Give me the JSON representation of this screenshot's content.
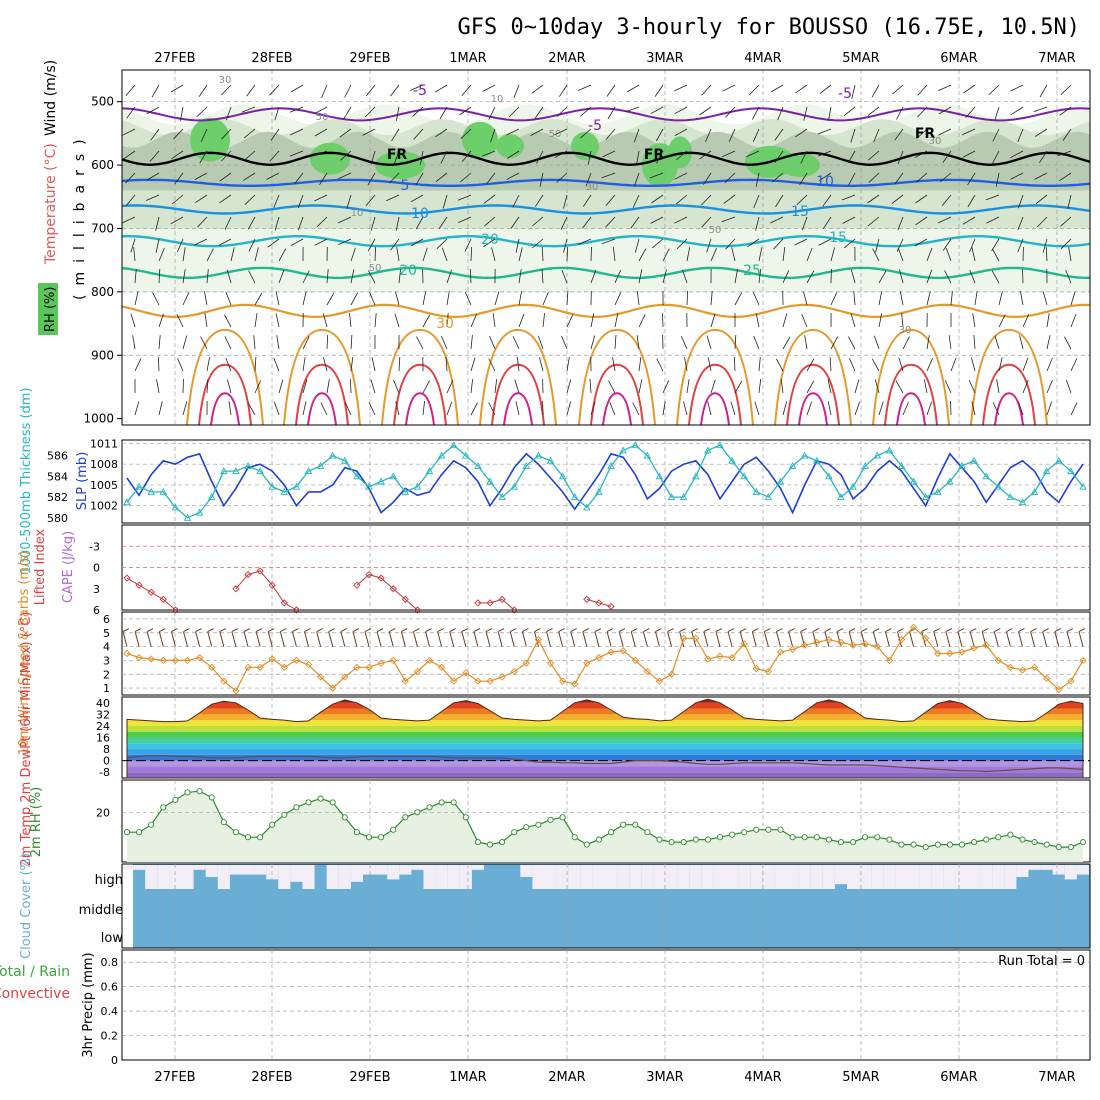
{
  "title": "GFS 0~10day 3-hourly for BOUSSO (16.75E, 10.5N)",
  "dates": [
    "27FEB",
    "28FEB",
    "29FEB",
    "1MAR",
    "2MAR",
    "3MAR",
    "4MAR",
    "5MAR",
    "6MAR",
    "7MAR"
  ],
  "colors": {
    "frame": "#000000",
    "grid": "#a0a0a0",
    "slp": "#1e3fd6",
    "thickness": "#27b7be",
    "lifted_index": "#c43a3a",
    "wind_speed": "#e28d25",
    "barb": "#6b3b22",
    "rh": "#2d8c2d",
    "rh_fill": "#e6f1e2",
    "cloud": "#6aaed6",
    "cloud_clear": "#f3eef6",
    "cape_label": "#b36ad6"
  },
  "upper_panel": {
    "ylabel_text": "(millibars)",
    "labels": {
      "rh": "RH (%)",
      "temperature": "Temperature (°C)",
      "wind": "Wind (m/s)"
    },
    "ylevels": [
      "500",
      "600",
      "700",
      "800",
      "900",
      "1000"
    ],
    "temp_labels": [
      "-5",
      "-5",
      "-5",
      "5",
      "10",
      "10",
      "15",
      "15",
      "20",
      "20",
      "25",
      "30",
      "FR",
      "FR",
      "FR"
    ],
    "rh_labels": [
      "30",
      "10",
      "50",
      "50",
      "30",
      "10",
      "50",
      "50",
      "30",
      "30",
      "10"
    ]
  },
  "chart_data": [
    {
      "type": "line",
      "panel": "slp_thickness",
      "ylabel_left": "1000-500mb Thickness (dm)",
      "ylabel_right": "SLP (mb)",
      "yticks_left": [
        "586",
        "584",
        "582",
        "580"
      ],
      "yticks_right": [
        "1011",
        "1008",
        "1005",
        "1002"
      ],
      "ylim_left": [
        579.5,
        587.5
      ],
      "ylim_right": [
        999.5,
        1011.5
      ],
      "series": [
        {
          "name": "SLP (mb)",
          "values": [
            1006,
            1003.5,
            1006.5,
            1008.5,
            1008,
            1009,
            1009.5,
            1005.5,
            1002,
            1004.5,
            1007.5,
            1008,
            1007,
            1005,
            1002,
            1004,
            1004,
            1005,
            1007.5,
            1007,
            1004.5,
            1001,
            1002.5,
            1004.5,
            1003.5,
            1004,
            1006.5,
            1008.5,
            1007.5,
            1005.5,
            1002,
            1004.5,
            1007.5,
            1009.5,
            1008,
            1006,
            1004,
            1001.5,
            1004,
            1006.5,
            1009.5,
            1009,
            1006.5,
            1003,
            1004.5,
            1007,
            1008,
            1008.5,
            1006.5,
            1003,
            1005.5,
            1008,
            1009,
            1007,
            1004.5,
            1001,
            1005,
            1008.5,
            1008,
            1006.5,
            1003,
            1004.5,
            1007,
            1008.5,
            1007,
            1004.5,
            1002,
            1006,
            1009.5,
            1007.5,
            1005.5,
            1002.5,
            1005,
            1007.5,
            1008.5,
            1007,
            1004,
            1002.5,
            1005.5,
            1008
          ]
        },
        {
          "name": "1000-500mb Thickness (dm)",
          "values": [
            581.5,
            583,
            582.5,
            582.5,
            581,
            580,
            580.5,
            582,
            584.5,
            584.5,
            585,
            584.5,
            583,
            582.5,
            583,
            584.5,
            585,
            586,
            585.5,
            584,
            583,
            583.5,
            584,
            582.5,
            583,
            584.5,
            586,
            587,
            586,
            585,
            583.5,
            582,
            583,
            585,
            586,
            585.5,
            584,
            582,
            581,
            582.5,
            585,
            586.5,
            587,
            586,
            584,
            582,
            582,
            584,
            586.5,
            587,
            585.5,
            584,
            582.5,
            582,
            583.5,
            585,
            586,
            585.5,
            584,
            582,
            583,
            585,
            586,
            586.5,
            585,
            583.5,
            582,
            582.5,
            583.5,
            585,
            585.5,
            584,
            583,
            582,
            581.5,
            582.5,
            584.5,
            585.5,
            584.5,
            583
          ]
        }
      ]
    },
    {
      "type": "line",
      "panel": "lifted_index_cape",
      "ylabel_left": "Lifted Index",
      "ylabel_right": "CAPE (J/kg)",
      "yticks": [
        "-3",
        "0",
        "3",
        "6"
      ],
      "ylim": [
        6,
        -6
      ],
      "series": [
        {
          "name": "Lifted Index",
          "values": [
            1.5,
            2.5,
            3.5,
            4.5,
            6,
            null,
            null,
            null,
            null,
            3,
            1,
            0.5,
            2.5,
            5,
            6,
            null,
            null,
            null,
            null,
            2.5,
            1,
            1.5,
            3,
            4.5,
            6,
            null,
            null,
            null,
            null,
            5,
            5,
            4.5,
            6,
            null,
            null,
            null,
            null,
            null,
            4.5,
            5,
            5.5,
            null
          ]
        }
      ]
    },
    {
      "type": "line",
      "panel": "wind_10m",
      "ylabel": "10m Wind Speed & Barbs (m/s)",
      "yticks": [
        "6",
        "5",
        "4",
        "3",
        "2",
        "1"
      ],
      "ylim": [
        0.5,
        6.5
      ],
      "series": [
        {
          "name": "10m Wind Speed (m/s)",
          "values": [
            3.5,
            3.2,
            3.1,
            3,
            3,
            3,
            3.2,
            2.5,
            1.5,
            0.8,
            2.5,
            2.5,
            3.1,
            2.5,
            3,
            2.7,
            1.8,
            1,
            1.8,
            2.5,
            2.5,
            2.8,
            3,
            1.5,
            2.2,
            3,
            2.5,
            1.5,
            2.1,
            1.5,
            1.5,
            1.8,
            2.2,
            2.8,
            4.5,
            2.8,
            1.5,
            1.3,
            2.8,
            3.2,
            3.6,
            3.7,
            3,
            2.2,
            1.5,
            2,
            4.6,
            4.6,
            3.1,
            3.3,
            3.2,
            4.2,
            2.4,
            2.2,
            3.6,
            3.8,
            4.1,
            4.3,
            4.5,
            4.3,
            4.1,
            4.2,
            4,
            3,
            4.5,
            5.4,
            4.6,
            3.5,
            3.5,
            3.6,
            3.9,
            4.1,
            3,
            2.5,
            2.3,
            2.5,
            1.7,
            0.9,
            1.5,
            3
          ]
        }
      ]
    },
    {
      "type": "area",
      "panel": "temp_dewpt",
      "ylabel": "2m Temp 2m DewPt (6hr Min/Max) (°C)",
      "yticks": [
        "40",
        "32",
        "24",
        "16",
        "8",
        "0",
        "-8"
      ],
      "ylim": [
        -12,
        44
      ],
      "series": [
        {
          "name": "2m Temp (°C)",
          "values": [
            28.5,
            28,
            27.5,
            27,
            27,
            27.5,
            33,
            39,
            41,
            40,
            35,
            29.5,
            28.5,
            28,
            27,
            27.5,
            33.5,
            39,
            42,
            40,
            35.5,
            29.5,
            28.5,
            28,
            27.5,
            28,
            34,
            40,
            41.5,
            39.5,
            34.5,
            29.5,
            28.5,
            28,
            27.5,
            28,
            34,
            40,
            42,
            40,
            35,
            30,
            29,
            28.5,
            27.5,
            28,
            34,
            40,
            42.5,
            40,
            35,
            29.5,
            28.5,
            28,
            27.5,
            28,
            34,
            40,
            42,
            40,
            35,
            29.5,
            28.5,
            28,
            27,
            27.5,
            33.5,
            39.5,
            41.5,
            39.5,
            34.5,
            29,
            28,
            27.5,
            27,
            27.5,
            33,
            39,
            41,
            39.5
          ]
        },
        {
          "name": "2m DewPt (°C)",
          "values": [
            2,
            3,
            3.5,
            3.5,
            3,
            3,
            2.5,
            2,
            2,
            2,
            2.5,
            3,
            3,
            3,
            3,
            3,
            2.5,
            2,
            2,
            2.5,
            3,
            3,
            3,
            3,
            3,
            3,
            2.5,
            2,
            2,
            2,
            2,
            2,
            1,
            0,
            -1,
            -1,
            -1.5,
            -1.5,
            -2,
            -2,
            -2,
            -1,
            0,
            0,
            0,
            -0.5,
            -1,
            -2,
            -2.5,
            -2.5,
            -2,
            -1.5,
            -1.5,
            -1.5,
            -1.5,
            -1.5,
            -2,
            -2.5,
            -3,
            -3,
            -3,
            -3,
            -3.5,
            -4,
            -4.5,
            -5,
            -5.5,
            -6,
            -6.5,
            -7,
            -7,
            -7.5,
            -7,
            -6.5,
            -6,
            -5.5,
            -5,
            -5,
            -5.5,
            -6
          ]
        }
      ]
    },
    {
      "type": "area",
      "panel": "rh_2m",
      "ylabel": "2m RH (%)",
      "yticks": [
        "20"
      ],
      "ylim": [
        0,
        33
      ],
      "series": [
        {
          "name": "2m RH (%)",
          "values": [
            12,
            12,
            15,
            22,
            25,
            28,
            28.5,
            26,
            16,
            12,
            10,
            10,
            15,
            19,
            22,
            24,
            25.5,
            24,
            18,
            12,
            10,
            10,
            13,
            18,
            20,
            22,
            24,
            24,
            18,
            8,
            7,
            8,
            12,
            14,
            15,
            17,
            18,
            10,
            7,
            9,
            12,
            15,
            15,
            12,
            9,
            8,
            8,
            9,
            9,
            10,
            11,
            12,
            13,
            13,
            13,
            10,
            10,
            10,
            9,
            8,
            8,
            10,
            10,
            9,
            7,
            7,
            6,
            7,
            7,
            7,
            8,
            9,
            10,
            11,
            9,
            8,
            7,
            6,
            6,
            8
          ]
        }
      ]
    },
    {
      "type": "bar",
      "panel": "cloud_cover",
      "ylabel": "Cloud Cover (%)",
      "yticks": [
        "high",
        "middle",
        "low"
      ],
      "series": [
        {
          "name": "high",
          "values": [
            80,
            80,
            0,
            0,
            0,
            0,
            80,
            50,
            0,
            60,
            60,
            60,
            40,
            0,
            30,
            0,
            100,
            0,
            0,
            30,
            60,
            60,
            40,
            60,
            80,
            0,
            0,
            0,
            0,
            80,
            100,
            100,
            100,
            50,
            0,
            0,
            0,
            0,
            0,
            0,
            0,
            0,
            0,
            0,
            0,
            0,
            0,
            0,
            0,
            0,
            0,
            0,
            0,
            0,
            0,
            0,
            0,
            0,
            0,
            20,
            0,
            0,
            0,
            0,
            0,
            0,
            0,
            0,
            0,
            0,
            0,
            0,
            0,
            0,
            50,
            80,
            80,
            60,
            40,
            60
          ]
        },
        {
          "name": "middle",
          "values": [
            0,
            0,
            0,
            0,
            0,
            0,
            0,
            0,
            0,
            0,
            0,
            0,
            0,
            0,
            0,
            0,
            0,
            0,
            0,
            0,
            0,
            0,
            0,
            0,
            0,
            0,
            0,
            0,
            0,
            0,
            0,
            0,
            0,
            0,
            0,
            0,
            0,
            0,
            0,
            0,
            0,
            0,
            0,
            0,
            0,
            0,
            0,
            0,
            0,
            0,
            0,
            0,
            0,
            0,
            0,
            0,
            0,
            0,
            0,
            0,
            0,
            0,
            0,
            0,
            0,
            0,
            0,
            0,
            0,
            0,
            0,
            0,
            0,
            0,
            0,
            0,
            0,
            0,
            0,
            0
          ]
        },
        {
          "name": "low",
          "values": [
            0,
            0,
            0,
            0,
            0,
            0,
            0,
            0,
            0,
            0,
            0,
            0,
            0,
            0,
            0,
            0,
            0,
            0,
            0,
            0,
            0,
            0,
            0,
            0,
            0,
            0,
            0,
            0,
            0,
            0,
            0,
            0,
            0,
            0,
            0,
            0,
            0,
            0,
            0,
            0,
            0,
            0,
            0,
            0,
            0,
            0,
            0,
            0,
            0,
            0,
            0,
            0,
            0,
            0,
            0,
            0,
            0,
            0,
            0,
            0,
            0,
            0,
            0,
            0,
            0,
            0,
            0,
            0,
            0,
            0,
            0,
            0,
            0,
            0,
            0,
            0,
            0,
            0,
            0,
            0
          ]
        }
      ]
    },
    {
      "type": "bar",
      "panel": "precip",
      "ylabel": "3hr Precip (mm)",
      "legend_total": "Total / Rain",
      "legend_convective": "Convective",
      "run_total": "Run Total = 0",
      "yticks": [
        "0.8",
        "0.6",
        "0.4",
        "0.2",
        "0"
      ],
      "ylim": [
        0,
        0.9
      ],
      "series": [
        {
          "name": "3hr Precip (mm)",
          "values": [
            0,
            0,
            0,
            0,
            0,
            0,
            0,
            0,
            0,
            0,
            0,
            0,
            0,
            0,
            0,
            0,
            0,
            0,
            0,
            0,
            0,
            0,
            0,
            0,
            0,
            0,
            0,
            0,
            0,
            0,
            0,
            0,
            0,
            0,
            0,
            0,
            0,
            0,
            0,
            0,
            0,
            0,
            0,
            0,
            0,
            0,
            0,
            0,
            0,
            0,
            0,
            0,
            0,
            0,
            0,
            0,
            0,
            0,
            0,
            0,
            0,
            0,
            0,
            0,
            0,
            0,
            0,
            0,
            0,
            0,
            0,
            0,
            0,
            0,
            0,
            0,
            0,
            0,
            0,
            0
          ]
        }
      ]
    }
  ]
}
